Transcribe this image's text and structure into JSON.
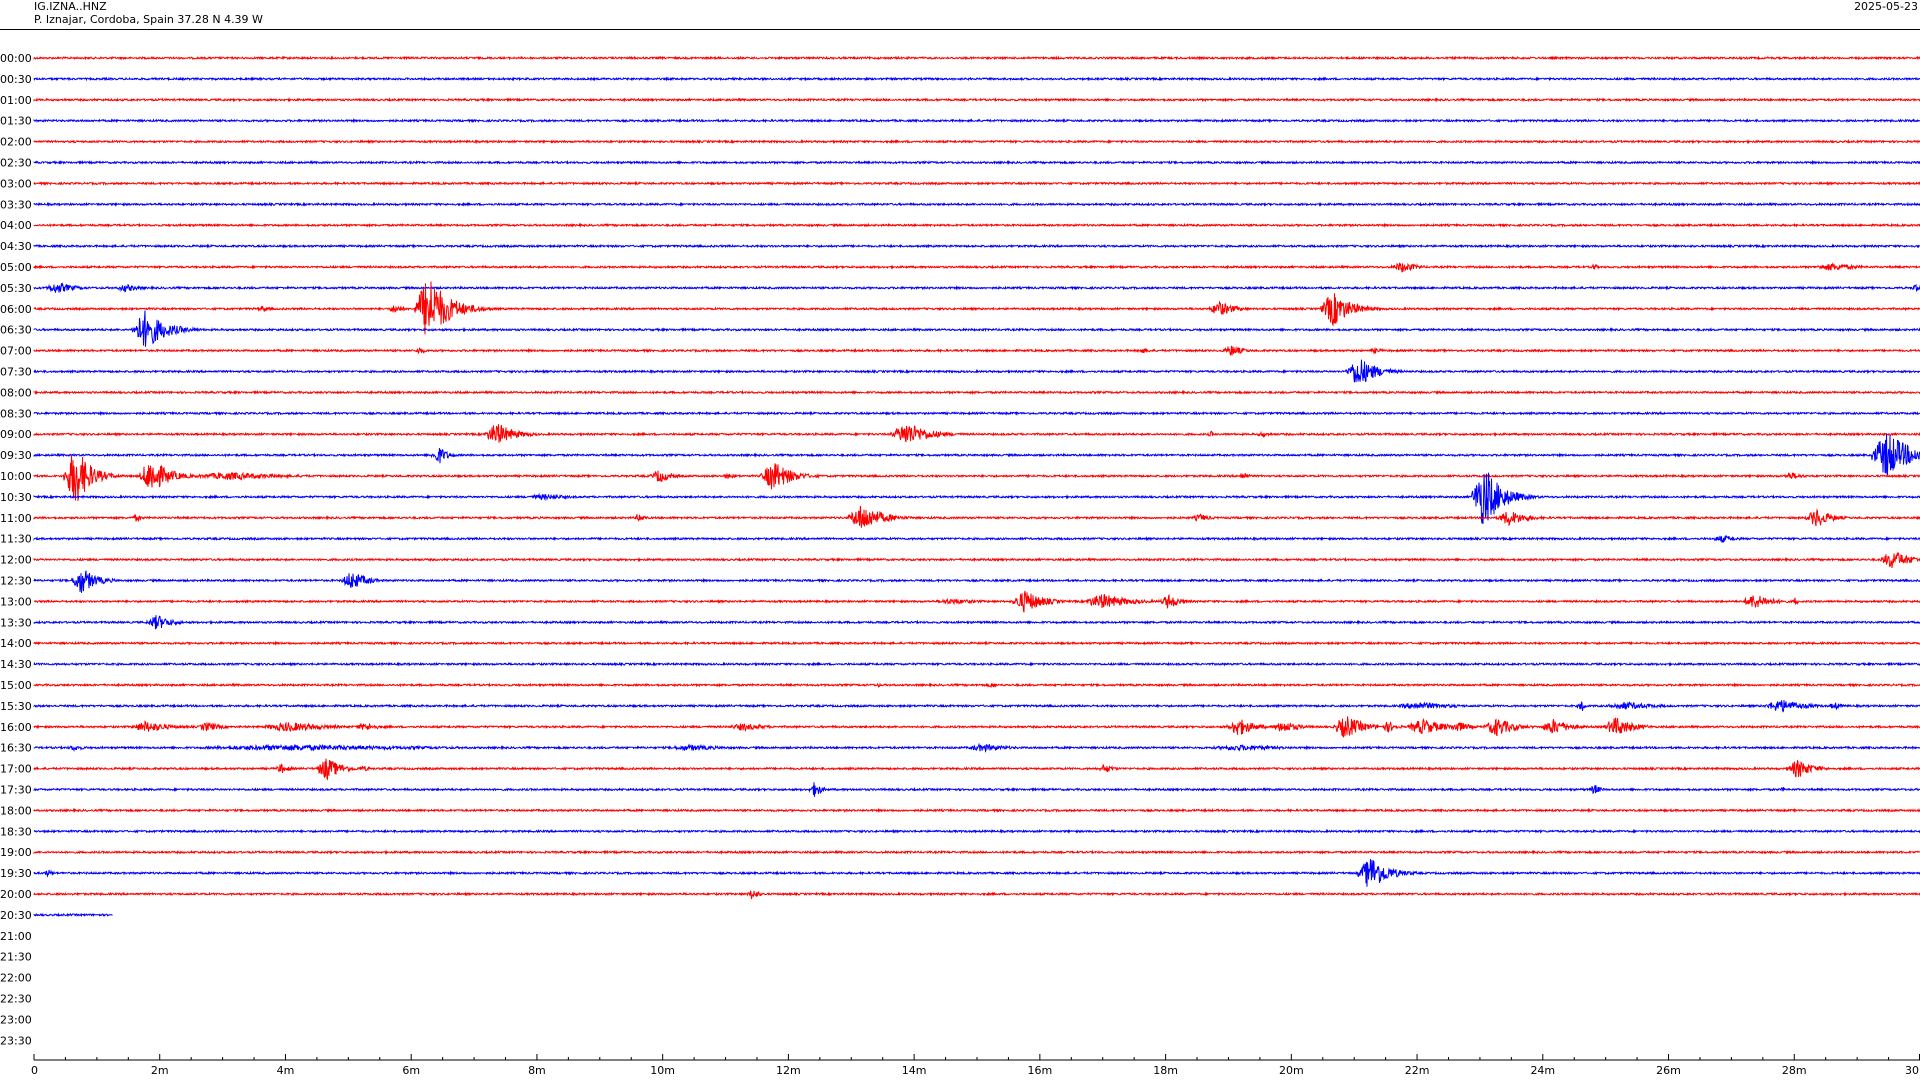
{
  "header": {
    "station_code": "IG.IZNA..HNZ",
    "station_location": "P. Iznajar, Cordoba, Spain  37.28 N 4.39 W",
    "date": "2025-05-23"
  },
  "chart_data": {
    "type": "line",
    "title": "",
    "xlabel": "",
    "ylabel": "",
    "x_unit": "minutes",
    "xlim": [
      0,
      30
    ],
    "x_ticks": [
      0,
      2,
      4,
      6,
      8,
      10,
      12,
      14,
      16,
      18,
      20,
      22,
      24,
      26,
      28,
      30
    ],
    "x_tick_labels": [
      "0",
      "2m",
      "4m",
      "6m",
      "8m",
      "10m",
      "12m",
      "14m",
      "16m",
      "18m",
      "20m",
      "22m",
      "24m",
      "26m",
      "28m",
      "30"
    ],
    "series_colors": [
      "#ff0000",
      "#0000ff"
    ],
    "rows": [
      {
        "label": "00:00",
        "color": "#ff0000",
        "end_min": 30,
        "events": []
      },
      {
        "label": "00:30",
        "color": "#0000ff",
        "end_min": 30,
        "events": []
      },
      {
        "label": "01:00",
        "color": "#ff0000",
        "end_min": 30,
        "events": []
      },
      {
        "label": "01:30",
        "color": "#0000ff",
        "end_min": 30,
        "events": []
      },
      {
        "label": "02:00",
        "color": "#ff0000",
        "end_min": 30,
        "events": []
      },
      {
        "label": "02:30",
        "color": "#0000ff",
        "end_min": 30,
        "events": []
      },
      {
        "label": "03:00",
        "color": "#ff0000",
        "end_min": 30,
        "events": []
      },
      {
        "label": "03:30",
        "color": "#0000ff",
        "end_min": 30,
        "events": []
      },
      {
        "label": "04:00",
        "color": "#ff0000",
        "end_min": 30,
        "events": []
      },
      {
        "label": "04:30",
        "color": "#0000ff",
        "end_min": 30,
        "events": []
      },
      {
        "label": "05:00",
        "color": "#ff0000",
        "end_min": 30,
        "events": [
          {
            "t": 21.7,
            "amp": 6,
            "dur": 0.5
          },
          {
            "t": 24.8,
            "amp": 5,
            "dur": 0.1
          },
          {
            "t": 28.5,
            "amp": 4,
            "dur": 0.9
          }
        ]
      },
      {
        "label": "05:30",
        "color": "#0000ff",
        "end_min": 30,
        "events": [
          {
            "t": 0.3,
            "amp": 6,
            "dur": 0.6
          },
          {
            "t": 1.4,
            "amp": 4,
            "dur": 0.5
          },
          {
            "t": 29.9,
            "amp": 4,
            "dur": 0.2
          }
        ]
      },
      {
        "label": "06:00",
        "color": "#ff0000",
        "end_min": 30,
        "events": [
          {
            "t": 6.2,
            "amp": 34,
            "dur": 0.7
          },
          {
            "t": 5.7,
            "amp": 5,
            "dur": 0.3
          },
          {
            "t": 18.8,
            "amp": 8,
            "dur": 0.5
          },
          {
            "t": 20.6,
            "amp": 18,
            "dur": 0.6
          },
          {
            "t": 3.6,
            "amp": 3,
            "dur": 0.3
          }
        ]
      },
      {
        "label": "06:30",
        "color": "#0000ff",
        "end_min": 30,
        "events": [
          {
            "t": 1.7,
            "amp": 20,
            "dur": 0.7
          }
        ]
      },
      {
        "label": "07:00",
        "color": "#ff0000",
        "end_min": 30,
        "events": [
          {
            "t": 6.1,
            "amp": 4,
            "dur": 0.2
          },
          {
            "t": 17.6,
            "amp": 3,
            "dur": 0.3
          },
          {
            "t": 19.0,
            "amp": 6,
            "dur": 0.4
          },
          {
            "t": 21.3,
            "amp": 3,
            "dur": 0.3
          }
        ]
      },
      {
        "label": "07:30",
        "color": "#0000ff",
        "end_min": 30,
        "events": [
          {
            "t": 21.0,
            "amp": 16,
            "dur": 0.6
          }
        ]
      },
      {
        "label": "08:00",
        "color": "#ff0000",
        "end_min": 30,
        "events": []
      },
      {
        "label": "08:30",
        "color": "#0000ff",
        "end_min": 30,
        "events": []
      },
      {
        "label": "09:00",
        "color": "#ff0000",
        "end_min": 30,
        "events": [
          {
            "t": 7.3,
            "amp": 12,
            "dur": 0.6
          },
          {
            "t": 13.8,
            "amp": 12,
            "dur": 0.8
          },
          {
            "t": 18.7,
            "amp": 4,
            "dur": 0.1
          },
          {
            "t": 19.5,
            "amp": 3,
            "dur": 0.3
          }
        ]
      },
      {
        "label": "09:30",
        "color": "#0000ff",
        "end_min": 30,
        "events": [
          {
            "t": 6.4,
            "amp": 10,
            "dur": 0.3
          },
          {
            "t": 29.4,
            "amp": 24,
            "dur": 0.8
          }
        ]
      },
      {
        "label": "10:00",
        "color": "#ff0000",
        "end_min": 30,
        "events": [
          {
            "t": 0.6,
            "amp": 32,
            "dur": 0.5
          },
          {
            "t": 1.8,
            "amp": 18,
            "dur": 0.6
          },
          {
            "t": 2.9,
            "amp": 4,
            "dur": 2.0
          },
          {
            "t": 9.9,
            "amp": 7,
            "dur": 0.4
          },
          {
            "t": 11.7,
            "amp": 16,
            "dur": 0.6
          },
          {
            "t": 11.0,
            "amp": 3,
            "dur": 0.4
          },
          {
            "t": 19.2,
            "amp": 5,
            "dur": 0.2
          },
          {
            "t": 27.9,
            "amp": 4,
            "dur": 0.4
          }
        ]
      },
      {
        "label": "10:30",
        "color": "#0000ff",
        "end_min": 30,
        "events": [
          {
            "t": 8.0,
            "amp": 3,
            "dur": 1.0
          },
          {
            "t": 23.0,
            "amp": 32,
            "dur": 0.6
          }
        ]
      },
      {
        "label": "11:00",
        "color": "#ff0000",
        "end_min": 30,
        "events": [
          {
            "t": 1.6,
            "amp": 4,
            "dur": 0.2
          },
          {
            "t": 9.6,
            "amp": 5,
            "dur": 0.2
          },
          {
            "t": 13.1,
            "amp": 14,
            "dur": 0.7
          },
          {
            "t": 18.5,
            "amp": 4,
            "dur": 0.4
          },
          {
            "t": 23.4,
            "amp": 8,
            "dur": 0.6
          },
          {
            "t": 28.3,
            "amp": 10,
            "dur": 0.5
          }
        ]
      },
      {
        "label": "11:30",
        "color": "#0000ff",
        "end_min": 30,
        "events": [
          {
            "t": 26.8,
            "amp": 4,
            "dur": 0.5
          }
        ]
      },
      {
        "label": "12:00",
        "color": "#ff0000",
        "end_min": 30,
        "events": [
          {
            "t": 29.5,
            "amp": 10,
            "dur": 0.6
          }
        ]
      },
      {
        "label": "12:30",
        "color": "#0000ff",
        "end_min": 30,
        "events": [
          {
            "t": 0.7,
            "amp": 14,
            "dur": 0.5
          },
          {
            "t": 5.0,
            "amp": 10,
            "dur": 0.5
          }
        ]
      },
      {
        "label": "13:00",
        "color": "#ff0000",
        "end_min": 30,
        "events": [
          {
            "t": 14.5,
            "amp": 3,
            "dur": 1.0
          },
          {
            "t": 15.7,
            "amp": 12,
            "dur": 0.6
          },
          {
            "t": 16.9,
            "amp": 8,
            "dur": 0.9
          },
          {
            "t": 18.0,
            "amp": 8,
            "dur": 0.4
          },
          {
            "t": 27.3,
            "amp": 8,
            "dur": 0.6
          },
          {
            "t": 28.0,
            "amp": 5,
            "dur": 0.1
          }
        ]
      },
      {
        "label": "13:30",
        "color": "#0000ff",
        "end_min": 30,
        "events": [
          {
            "t": 1.9,
            "amp": 8,
            "dur": 0.5
          }
        ]
      },
      {
        "label": "14:00",
        "color": "#ff0000",
        "end_min": 30,
        "events": []
      },
      {
        "label": "14:30",
        "color": "#0000ff",
        "end_min": 30,
        "events": []
      },
      {
        "label": "15:00",
        "color": "#ff0000",
        "end_min": 30,
        "events": [
          {
            "t": 13.4,
            "amp": 3,
            "dur": 0.1
          },
          {
            "t": 15.2,
            "amp": 3,
            "dur": 0.2
          }
        ]
      },
      {
        "label": "15:30",
        "color": "#0000ff",
        "end_min": 30,
        "events": [
          {
            "t": 21.9,
            "amp": 4,
            "dur": 1.2
          },
          {
            "t": 24.6,
            "amp": 8,
            "dur": 0.1
          },
          {
            "t": 25.2,
            "amp": 4,
            "dur": 1.1
          },
          {
            "t": 27.7,
            "amp": 7,
            "dur": 0.8
          },
          {
            "t": 28.6,
            "amp": 4,
            "dur": 0.3
          }
        ]
      },
      {
        "label": "16:00",
        "color": "#ff0000",
        "end_min": 30,
        "events": [
          {
            "t": 1.7,
            "amp": 6,
            "dur": 0.8
          },
          {
            "t": 2.7,
            "amp": 5,
            "dur": 0.5
          },
          {
            "t": 3.9,
            "amp": 5,
            "dur": 1.4
          },
          {
            "t": 5.2,
            "amp": 4,
            "dur": 0.6
          },
          {
            "t": 11.2,
            "amp": 4,
            "dur": 0.8
          },
          {
            "t": 19.1,
            "amp": 10,
            "dur": 0.5
          },
          {
            "t": 19.8,
            "amp": 6,
            "dur": 0.6
          },
          {
            "t": 20.8,
            "amp": 12,
            "dur": 0.6
          },
          {
            "t": 21.5,
            "amp": 6,
            "dur": 0.3
          },
          {
            "t": 22.0,
            "amp": 8,
            "dur": 0.8
          },
          {
            "t": 22.6,
            "amp": 6,
            "dur": 0.4
          },
          {
            "t": 23.2,
            "amp": 10,
            "dur": 0.6
          },
          {
            "t": 24.1,
            "amp": 8,
            "dur": 0.6
          },
          {
            "t": 25.1,
            "amp": 10,
            "dur": 0.6
          }
        ]
      },
      {
        "label": "16:30",
        "color": "#0000ff",
        "end_min": 30,
        "events": [
          {
            "t": 0.6,
            "amp": 3,
            "dur": 0.4
          },
          {
            "t": 3.5,
            "amp": 3,
            "dur": 5.6
          },
          {
            "t": 10.3,
            "amp": 3,
            "dur": 1.3
          },
          {
            "t": 15.0,
            "amp": 4,
            "dur": 0.9
          },
          {
            "t": 19.0,
            "amp": 3,
            "dur": 1.7
          }
        ]
      },
      {
        "label": "17:00",
        "color": "#ff0000",
        "end_min": 30,
        "events": [
          {
            "t": 3.9,
            "amp": 5,
            "dur": 0.3
          },
          {
            "t": 4.6,
            "amp": 12,
            "dur": 0.5
          },
          {
            "t": 5.2,
            "amp": 3,
            "dur": 0.3
          },
          {
            "t": 17.0,
            "amp": 5,
            "dur": 0.3
          },
          {
            "t": 28.0,
            "amp": 10,
            "dur": 0.5
          }
        ]
      },
      {
        "label": "17:30",
        "color": "#0000ff",
        "end_min": 30,
        "events": [
          {
            "t": 12.4,
            "amp": 9,
            "dur": 0.2
          },
          {
            "t": 24.8,
            "amp": 6,
            "dur": 0.2
          },
          {
            "t": 27.8,
            "amp": 3,
            "dur": 0.1
          }
        ]
      },
      {
        "label": "18:00",
        "color": "#ff0000",
        "end_min": 30,
        "events": []
      },
      {
        "label": "18:30",
        "color": "#0000ff",
        "end_min": 30,
        "events": []
      },
      {
        "label": "19:00",
        "color": "#ff0000",
        "end_min": 30,
        "events": []
      },
      {
        "label": "19:30",
        "color": "#0000ff",
        "end_min": 30,
        "events": [
          {
            "t": 0.2,
            "amp": 4,
            "dur": 0.2
          },
          {
            "t": 21.2,
            "amp": 18,
            "dur": 0.6
          }
        ]
      },
      {
        "label": "20:00",
        "color": "#ff0000",
        "end_min": 30,
        "events": [
          {
            "t": 11.4,
            "amp": 7,
            "dur": 0.2
          }
        ]
      },
      {
        "label": "20:30",
        "color": "#0000ff",
        "end_min": 1.25,
        "events": []
      },
      {
        "label": "21:00",
        "color": "#ff0000",
        "end_min": 0,
        "events": []
      },
      {
        "label": "21:30",
        "color": "#0000ff",
        "end_min": 0,
        "events": []
      },
      {
        "label": "22:00",
        "color": "#ff0000",
        "end_min": 0,
        "events": []
      },
      {
        "label": "22:30",
        "color": "#0000ff",
        "end_min": 0,
        "events": []
      },
      {
        "label": "23:00",
        "color": "#ff0000",
        "end_min": 0,
        "events": []
      },
      {
        "label": "23:30",
        "color": "#0000ff",
        "end_min": 0,
        "events": []
      }
    ]
  }
}
